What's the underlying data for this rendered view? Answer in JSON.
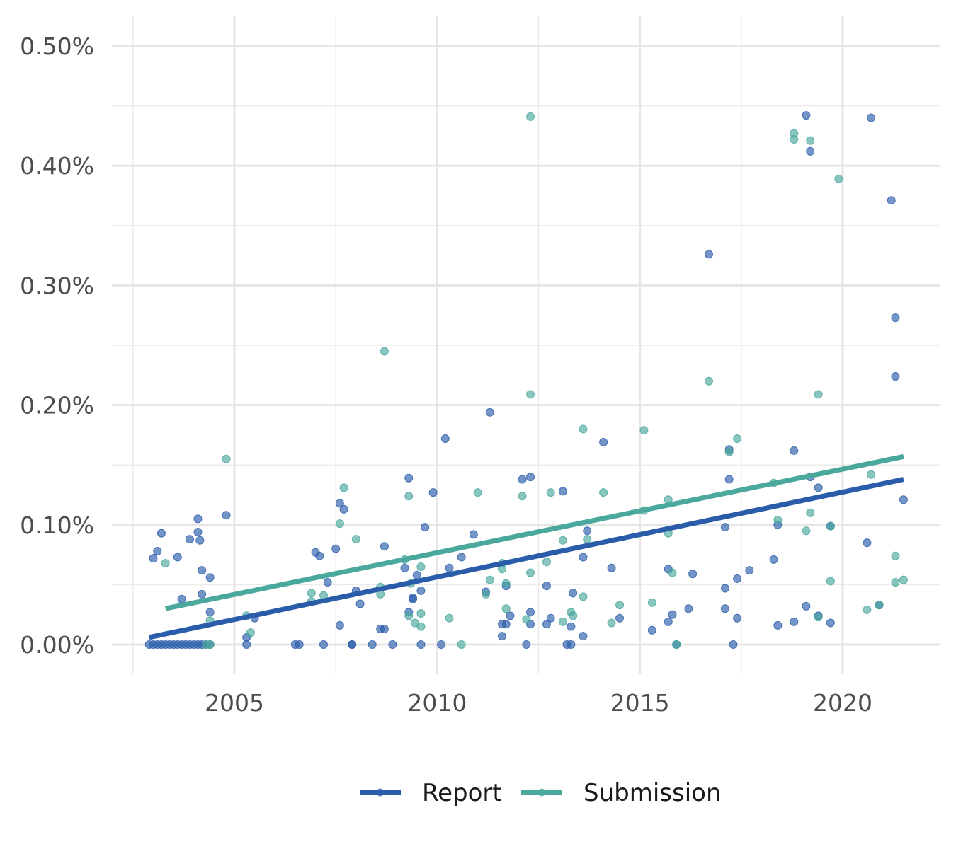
{
  "chart_data": {
    "type": "scatter",
    "title": "",
    "xlabel": "",
    "ylabel": "",
    "xlim": [
      2002.5,
      2021.9
    ],
    "ylim": [
      -0.00025,
      0.0052
    ],
    "x_ticks": [
      2005,
      2010,
      2015,
      2020
    ],
    "x_tick_labels": [
      "2005",
      "2010",
      "2015",
      "2020"
    ],
    "y_ticks": [
      0,
      0.001,
      0.002,
      0.003,
      0.004,
      0.005
    ],
    "y_tick_labels": [
      "0.00%",
      "0.10%",
      "0.20%",
      "0.30%",
      "0.40%",
      "0.50%"
    ],
    "grid": true,
    "legend_position": "bottom",
    "series": [
      {
        "name": "Report",
        "color": "#2a5caa",
        "trend": {
          "x": [
            2002.9,
            2021.5
          ],
          "y": [
            6e-05,
            0.00138
          ]
        },
        "points": [
          [
            2002.9,
            0
          ],
          [
            2003.0,
            0
          ],
          [
            2003.1,
            0
          ],
          [
            2003.2,
            0
          ],
          [
            2003.3,
            0
          ],
          [
            2003.4,
            0
          ],
          [
            2003.5,
            0
          ],
          [
            2003.6,
            0
          ],
          [
            2003.7,
            0
          ],
          [
            2003.8,
            0
          ],
          [
            2003.9,
            0
          ],
          [
            2004.0,
            0
          ],
          [
            2004.1,
            0
          ],
          [
            2004.2,
            0
          ],
          [
            2004.3,
            0
          ],
          [
            2004.4,
            0
          ],
          [
            2003.0,
            0.00072
          ],
          [
            2003.1,
            0.00078
          ],
          [
            2003.2,
            0.00093
          ],
          [
            2003.6,
            0.00073
          ],
          [
            2003.7,
            0.00038
          ],
          [
            2003.9,
            0.00088
          ],
          [
            2004.1,
            0.00105
          ],
          [
            2004.1,
            0.00094
          ],
          [
            2004.15,
            0.00087
          ],
          [
            2004.2,
            0.00062
          ],
          [
            2004.2,
            0.00042
          ],
          [
            2004.4,
            0.00056
          ],
          [
            2004.4,
            0.00027
          ],
          [
            2004.8,
            0.00108
          ],
          [
            2005.3,
            6e-05
          ],
          [
            2005.3,
            0
          ],
          [
            2005.5,
            0.00022
          ],
          [
            2006.5,
            0
          ],
          [
            2006.6,
            0
          ],
          [
            2007.0,
            0.00077
          ],
          [
            2007.1,
            0.00074
          ],
          [
            2007.2,
            0
          ],
          [
            2007.3,
            0.00052
          ],
          [
            2007.5,
            0.0008
          ],
          [
            2007.6,
            0.00118
          ],
          [
            2007.7,
            0.00113
          ],
          [
            2007.6,
            0.00016
          ],
          [
            2007.9,
            0
          ],
          [
            2007.9,
            0
          ],
          [
            2008.0,
            0.00045
          ],
          [
            2008.1,
            0.00034
          ],
          [
            2008.4,
            0
          ],
          [
            2008.6,
            0.00013
          ],
          [
            2008.7,
            0.00013
          ],
          [
            2008.7,
            0.00082
          ],
          [
            2008.9,
            0
          ],
          [
            2009.2,
            0.00064
          ],
          [
            2009.3,
            0.00139
          ],
          [
            2009.3,
            0.00027
          ],
          [
            2009.4,
            0.00038
          ],
          [
            2009.4,
            0.00039
          ],
          [
            2009.5,
            0.00058
          ],
          [
            2009.6,
            0.00045
          ],
          [
            2009.6,
            0
          ],
          [
            2009.7,
            0.00098
          ],
          [
            2009.9,
            0.00127
          ],
          [
            2010.1,
            0
          ],
          [
            2010.2,
            0.00172
          ],
          [
            2010.3,
            0.00064
          ],
          [
            2010.6,
            0.00073
          ],
          [
            2010.9,
            0.00092
          ],
          [
            2011.2,
            0.00044
          ],
          [
            2011.3,
            0.00194
          ],
          [
            2011.6,
            0.00017
          ],
          [
            2011.6,
            7e-05
          ],
          [
            2011.7,
            0.00049
          ],
          [
            2011.8,
            0.00024
          ],
          [
            2011.7,
            0.00017
          ],
          [
            2012.1,
            0.00138
          ],
          [
            2012.2,
            0
          ],
          [
            2012.3,
            0.0014
          ],
          [
            2012.3,
            0.00027
          ],
          [
            2012.3,
            0.00017
          ],
          [
            2012.7,
            0.00049
          ],
          [
            2012.7,
            0.00017
          ],
          [
            2012.8,
            0.00022
          ],
          [
            2013.1,
            0.00128
          ],
          [
            2013.2,
            0
          ],
          [
            2013.3,
            0
          ],
          [
            2013.3,
            0.00015
          ],
          [
            2013.35,
            0.00043
          ],
          [
            2013.6,
            0.00073
          ],
          [
            2013.6,
            7e-05
          ],
          [
            2013.7,
            0.00095
          ],
          [
            2014.1,
            0.00169
          ],
          [
            2014.3,
            0.00064
          ],
          [
            2014.5,
            0.00022
          ],
          [
            2015.3,
            0.00012
          ],
          [
            2015.7,
            0.00019
          ],
          [
            2015.7,
            0.00063
          ],
          [
            2015.8,
            0.00025
          ],
          [
            2015.9,
            0
          ],
          [
            2016.3,
            0.00059
          ],
          [
            2016.2,
            0.0003
          ],
          [
            2016.7,
            0.00326
          ],
          [
            2017.1,
            0.00098
          ],
          [
            2017.1,
            0.00047
          ],
          [
            2017.1,
            0.0003
          ],
          [
            2017.2,
            0.00163
          ],
          [
            2017.2,
            0.00138
          ],
          [
            2017.3,
            0
          ],
          [
            2017.4,
            0.00055
          ],
          [
            2017.4,
            0.00022
          ],
          [
            2017.7,
            0.00062
          ],
          [
            2018.3,
            0.00071
          ],
          [
            2018.4,
            0.001
          ],
          [
            2018.4,
            0.00016
          ],
          [
            2018.8,
            0.00162
          ],
          [
            2018.8,
            0.00019
          ],
          [
            2019.1,
            0.00442
          ],
          [
            2019.2,
            0.00412
          ],
          [
            2019.2,
            0.0014
          ],
          [
            2019.1,
            0.00032
          ],
          [
            2019.4,
            0.00131
          ],
          [
            2019.4,
            0.00024
          ],
          [
            2019.7,
            0.00099
          ],
          [
            2019.7,
            0.00018
          ],
          [
            2020.6,
            0.00085
          ],
          [
            2020.7,
            0.0044
          ],
          [
            2020.9,
            0.00033
          ],
          [
            2021.2,
            0.00371
          ],
          [
            2021.3,
            0.00273
          ],
          [
            2021.3,
            0.00224
          ],
          [
            2021.5,
            0.00121
          ]
        ]
      },
      {
        "name": "Submission",
        "color": "#4aa89c",
        "trend": {
          "x": [
            2003.3,
            2021.5
          ],
          "y": [
            0.0003,
            0.00157
          ]
        },
        "points": [
          [
            2003.3,
            0.00068
          ],
          [
            2004.3,
            0
          ],
          [
            2004.4,
            0
          ],
          [
            2004.4,
            0.0002
          ],
          [
            2004.8,
            0.00155
          ],
          [
            2005.4,
            0.0001
          ],
          [
            2005.3,
            0.00024
          ],
          [
            2006.9,
            0.00043
          ],
          [
            2006.9,
            0.00036
          ],
          [
            2007.2,
            0.00041
          ],
          [
            2007.6,
            0.00101
          ],
          [
            2007.7,
            0.00131
          ],
          [
            2008.0,
            0.00088
          ],
          [
            2008.6,
            0.00048
          ],
          [
            2008.6,
            0.00042
          ],
          [
            2008.7,
            0.00245
          ],
          [
            2009.2,
            0.00071
          ],
          [
            2009.3,
            0.00124
          ],
          [
            2009.35,
            0.00051
          ],
          [
            2009.3,
            0.00024
          ],
          [
            2009.45,
            0.00018
          ],
          [
            2009.6,
            0.00065
          ],
          [
            2009.6,
            0.00026
          ],
          [
            2009.6,
            0.00015
          ],
          [
            2010.3,
            0.00022
          ],
          [
            2010.6,
            0
          ],
          [
            2011.0,
            0.00127
          ],
          [
            2011.2,
            0.00042
          ],
          [
            2011.3,
            0.00054
          ],
          [
            2011.6,
            0.00063
          ],
          [
            2011.6,
            0.00068
          ],
          [
            2011.7,
            0.00051
          ],
          [
            2011.7,
            0.0003
          ],
          [
            2012.1,
            0.00124
          ],
          [
            2012.2,
            0.00021
          ],
          [
            2012.3,
            0.00441
          ],
          [
            2012.3,
            0.00209
          ],
          [
            2012.3,
            0.0006
          ],
          [
            2012.7,
            0.00069
          ],
          [
            2012.8,
            0.00127
          ],
          [
            2013.1,
            0.00087
          ],
          [
            2013.1,
            0.00019
          ],
          [
            2013.3,
            0.00027
          ],
          [
            2013.35,
            0.00024
          ],
          [
            2013.6,
            0.0018
          ],
          [
            2013.6,
            0.0004
          ],
          [
            2013.7,
            0.00088
          ],
          [
            2014.1,
            0.00127
          ],
          [
            2014.3,
            0.00018
          ],
          [
            2014.5,
            0.00033
          ],
          [
            2015.1,
            0.00179
          ],
          [
            2015.1,
            0.00112
          ],
          [
            2015.3,
            0.00035
          ],
          [
            2015.7,
            0.00121
          ],
          [
            2015.7,
            0.00093
          ],
          [
            2015.8,
            0.0006
          ],
          [
            2015.9,
            0
          ],
          [
            2016.7,
            0.0022
          ],
          [
            2017.2,
            0.00161
          ],
          [
            2017.4,
            0.00172
          ],
          [
            2018.3,
            0.00135
          ],
          [
            2018.4,
            0.00104
          ],
          [
            2018.8,
            0.00427
          ],
          [
            2018.8,
            0.00422
          ],
          [
            2019.1,
            0.00095
          ],
          [
            2019.2,
            0.00421
          ],
          [
            2019.2,
            0.0011
          ],
          [
            2019.4,
            0.00209
          ],
          [
            2019.4,
            0.00023
          ],
          [
            2019.7,
            0.00099
          ],
          [
            2019.7,
            0.00053
          ],
          [
            2019.9,
            0.00389
          ],
          [
            2020.6,
            0.00029
          ],
          [
            2020.7,
            0.00142
          ],
          [
            2020.9,
            0.00033
          ],
          [
            2021.3,
            0.00074
          ],
          [
            2021.3,
            0.00052
          ],
          [
            2021.5,
            0.00054
          ]
        ]
      }
    ]
  }
}
